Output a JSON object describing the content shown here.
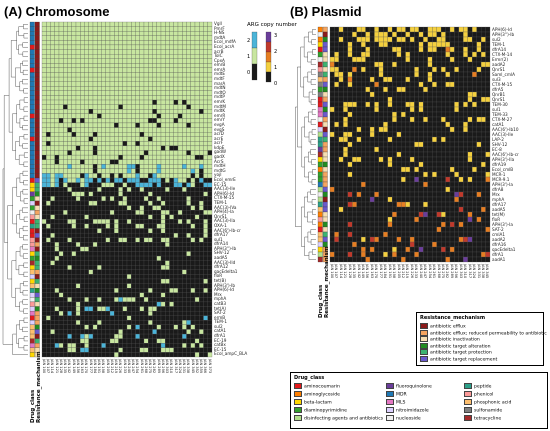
{
  "panel_a": {
    "title": "(A) Chromosome",
    "row_labels": [
      "Vgll",
      "PmrF",
      "H-NS",
      "mdtA",
      "Ecol_mdfA",
      "Ecol_acrA",
      "acrB",
      "TolC",
      "CpxA",
      "emrB",
      "emrA",
      "mdtE",
      "mdtF",
      "marA",
      "mdtN",
      "mdtO",
      "mdtP",
      "emrK",
      "mdtM",
      "mdtK",
      "emrR",
      "emrY",
      "evgA",
      "evgS",
      "acrD",
      "acrE",
      "acrF",
      "kdpE",
      "gadW",
      "gadX",
      "AcrS",
      "mdtH",
      "mdtG",
      "yojI",
      "Ecol_emrE",
      "EC-15",
      "AAC(3)-IIe",
      "APH(6)-Id",
      "CTX-M-15",
      "TEM-1",
      "AAC(3)-IVa",
      "APH(4)-Ia",
      "QnrS1",
      "AAC(3)-IIa",
      "OXA-1",
      "AAC(6')-Ib-cr",
      "dfrA17",
      "sul1",
      "dfrA14",
      "APH(3'')-Ib",
      "SHV-12",
      "aadA5",
      "AAC(3)-IId",
      "dfrA12",
      "qacEdelta1",
      "floR",
      "tet(B)",
      "APH(3')-Ib",
      "APH(6)-Id",
      "Mrx",
      "mphA",
      "catB3",
      "tet(A)",
      "SAT-2",
      "ermB",
      "TEM-1",
      "sul2",
      "catA1",
      "dfrA1",
      "EC-19",
      "catBx",
      "EC-15",
      "Ecol_ampC_BLA"
    ],
    "side_label_1": "Drug_class",
    "side_label_2": "Resistance_mechanism",
    "col_label_prefix": "JAN"
  },
  "panel_b": {
    "title": "(B) Plasmid",
    "row_labels": [
      "APH(6)-Id",
      "APH(3'')-Ib",
      "sul2",
      "TEM-1",
      "dfrA14",
      "CTX-M-14",
      "Ermr(2)",
      "aadA2",
      "QnrS1",
      "Saml_cmlA",
      "sul3",
      "CTX-M-15",
      "dfrA5",
      "QnrB1",
      "QnrS1",
      "TEM-30",
      "sul1",
      "TEM-33",
      "CTX-M-27",
      "catA1",
      "AAC(6')-Ib10",
      "AAC(3)-IIe",
      "LAP-2",
      "SHV-12",
      "EC-8",
      "AAC(6')-Ib-cr",
      "APH(3')-IIa",
      "dfrA19",
      "Ecol_cmlB",
      "MCR-1",
      "MCR-9.1",
      "APH(3')-Ia",
      "dfrA8",
      "Mrx",
      "mphA",
      "dfrA17",
      "aadA5",
      "tet(M)",
      "floR",
      "APH(3')-Ia",
      "SAT-2",
      "cmlA1",
      "aadA2",
      "dfrA16",
      "qacEdelta1",
      "dfrA1",
      "aadA1"
    ],
    "side_label_1": "Drug_class",
    "side_label_2": "Resistance_mechanism",
    "col_label_prefix": "JAN"
  },
  "colorbar": {
    "title": "ARG copy number",
    "gradient_ticks": [
      "3",
      "2",
      "1",
      "0"
    ],
    "discrete_ticks": [
      "2",
      "1",
      "0"
    ]
  },
  "legend_mechanism": {
    "title": "Resistance_mechanism",
    "items": [
      {
        "label": "antibiotic efflux",
        "color": "#8b1a1a"
      },
      {
        "label": "antibiotic efflux; reduced permeability to antibiotic",
        "color": "#f4a460"
      },
      {
        "label": "antibiotic inactivation",
        "color": "#f5deb3"
      },
      {
        "label": "antibiotic target alteration",
        "color": "#228b22"
      },
      {
        "label": "antibiotic target protection",
        "color": "#3cb371"
      },
      {
        "label": "antibiotic target replacement",
        "color": "#6a5acd"
      }
    ]
  },
  "legend_drug": {
    "title": "Drug_class",
    "items": [
      {
        "label": "aminocoumarin",
        "color": "#e31a1c"
      },
      {
        "label": "aminoglycoside",
        "color": "#ff7f00"
      },
      {
        "label": "beta-lactam",
        "color": "#ffd700"
      },
      {
        "label": "diaminopyrimidine",
        "color": "#33a02c"
      },
      {
        "label": "disinfecting agents and antibiotics",
        "color": "#b2df8a"
      },
      {
        "label": "fluoroquinolone",
        "color": "#6a3d9a"
      },
      {
        "label": "MDR",
        "color": "#1f78b4"
      },
      {
        "label": "MLS",
        "color": "#e377c2"
      },
      {
        "label": "nitroimidazole",
        "color": "#dcd0ff"
      },
      {
        "label": "nucleoside",
        "color": "#f0f0f0"
      },
      {
        "label": "peptide",
        "color": "#2ca089"
      },
      {
        "label": "phenicol",
        "color": "#fb9a99"
      },
      {
        "label": "phosphonic acid",
        "color": "#fdbf6f"
      },
      {
        "label": "sulfonamide",
        "color": "#7f7f7f"
      },
      {
        "label": "tetracycline",
        "color": "#a52a2a"
      }
    ]
  },
  "colors": {
    "zero": "#1a1a1a",
    "one": "#c8e6a0",
    "two": "#4bb4d8",
    "three": "#f4d03f",
    "four": "#e67e22",
    "five": "#c0392b",
    "six": "#6a3d9a",
    "grid": "#555555"
  }
}
